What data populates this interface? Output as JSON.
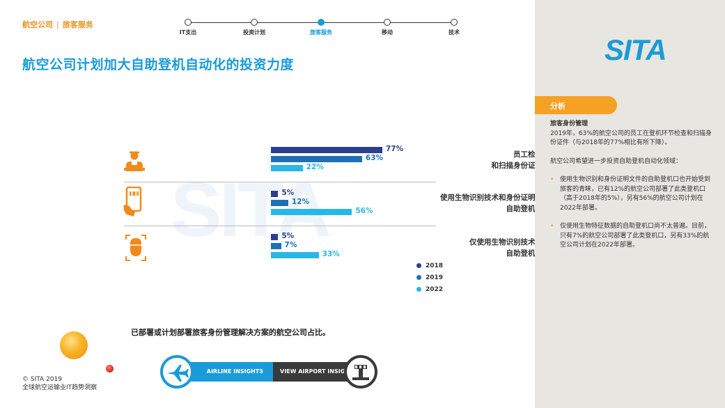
{
  "breadcrumb": {
    "section": "航空公司",
    "sub": "旅客服务"
  },
  "steps": [
    {
      "label": "IT支出",
      "active": false
    },
    {
      "label": "投资计划",
      "active": false
    },
    {
      "label": "旅客服务",
      "active": true
    },
    {
      "label": "移动",
      "active": false
    },
    {
      "label": "技术",
      "active": false
    }
  ],
  "title": "航空公司计划加大自助登机自动化的投资力度",
  "watermark": "SITA",
  "chart_data": {
    "type": "bar",
    "categories": [
      "员工检查\n和扫描身份证明",
      "使用生物识别技术和身份证明的\n自助登机口",
      "仅使用生物识别技术的\n自助登机口"
    ],
    "series": [
      {
        "name": "2018",
        "values": [
          77,
          5,
          5
        ],
        "labels": [
          "77%",
          "5%",
          "5%"
        ],
        "color": "#2a3f8f"
      },
      {
        "name": "2019",
        "values": [
          63,
          12,
          7
        ],
        "labels": [
          "63%",
          "12%",
          "7%"
        ],
        "color": "#1e6fb8"
      },
      {
        "name": "2022",
        "values": [
          22,
          56,
          33
        ],
        "labels": [
          "22%",
          "56%",
          "33%"
        ],
        "color": "#28b7e8"
      }
    ],
    "legend_position": "bottom-right"
  },
  "rows": [
    {
      "line1": "员工检查",
      "line2": "和扫描身份证明"
    },
    {
      "line1": "使用生物识别技术和身份证明的",
      "line2": "自助登机口"
    },
    {
      "line1": "仅使用生物识别技术的",
      "line2": "自助登机口"
    }
  ],
  "caption": "已部署或计划部署旅客身份管理解决方案的航空公司占比。",
  "insights": {
    "airline": "AIRLINE INSIGHTS",
    "airport": "VIEW AIRPORT INSIGHTS"
  },
  "copyright": {
    "line1": "© SITA 2019",
    "line2": "全球航空运输业IT趋势洞察"
  },
  "sidebar": {
    "logo": "SITA",
    "tab": "分析",
    "heading": "旅客身份管理",
    "para1": "2019年，63%的航空公司的员工在登机环节检查和扫描身份证件（与2018年的77%相比有所下降）。",
    "para2": "航空公司希望进一步投资自助登机自动化领域：",
    "bullets": [
      "使用生物识别和身份证明文件的自助登机口也开始受到旅客的青睐，已有12%的航空公司部署了此类登机口（高于2018年的5%），另有56%的航空公司计划在2022年部署。",
      "仅使用生物特征数据的自助登机口尚不太普遍。目前，只有7%的航空公司部署了此类登机口，另有33%的航空公司计划在2022年部署。"
    ]
  }
}
